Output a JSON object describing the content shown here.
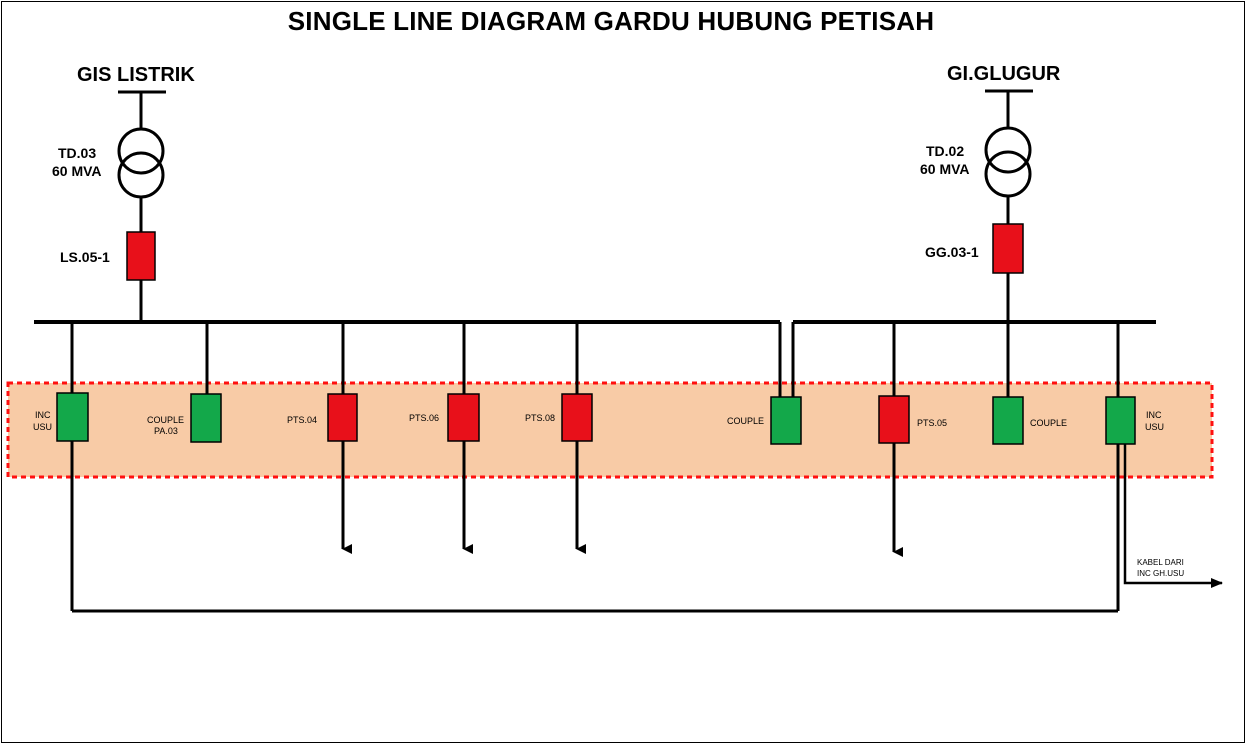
{
  "title": "SINGLE LINE DIAGRAM GARDU HUBUNG PETISAH",
  "colors": {
    "breaker_closed": "#e8101a",
    "breaker_open": "#13a84a",
    "zone_fill": "#f8cba6",
    "zone_border": "#ff1010",
    "line": "#000000"
  },
  "sources": {
    "left": {
      "name": "GIS LISTRIK",
      "transformer_id": "TD.03",
      "transformer_rating": "60 MVA",
      "breaker": "LS.05-1"
    },
    "right": {
      "name": "GI.GLUGUR",
      "transformer_id": "TD.02",
      "transformer_rating": "60 MVA",
      "breaker": "GG.03-1"
    }
  },
  "cubicles": {
    "inc_usu_left": {
      "label_line1": "INC",
      "label_line2": "USU",
      "state": "green"
    },
    "couple_pa03": {
      "label_line1": "COUPLE",
      "label_line2": "PA.03",
      "state": "green"
    },
    "pts04": {
      "label": "PTS.04",
      "state": "red"
    },
    "pts06": {
      "label": "PTS.06",
      "state": "red"
    },
    "pts08": {
      "label": "PTS.08",
      "state": "red"
    },
    "couple_mid": {
      "label": "COUPLE",
      "state": "green"
    },
    "pts05": {
      "label": "PTS.05",
      "state": "red"
    },
    "couple_right": {
      "label": "COUPLE",
      "state": "green"
    },
    "inc_usu_right": {
      "label_line1": "INC",
      "label_line2": "USU",
      "state": "green"
    }
  },
  "cable_note": {
    "line1": "KABEL DARI",
    "line2": "INC GH.USU"
  }
}
